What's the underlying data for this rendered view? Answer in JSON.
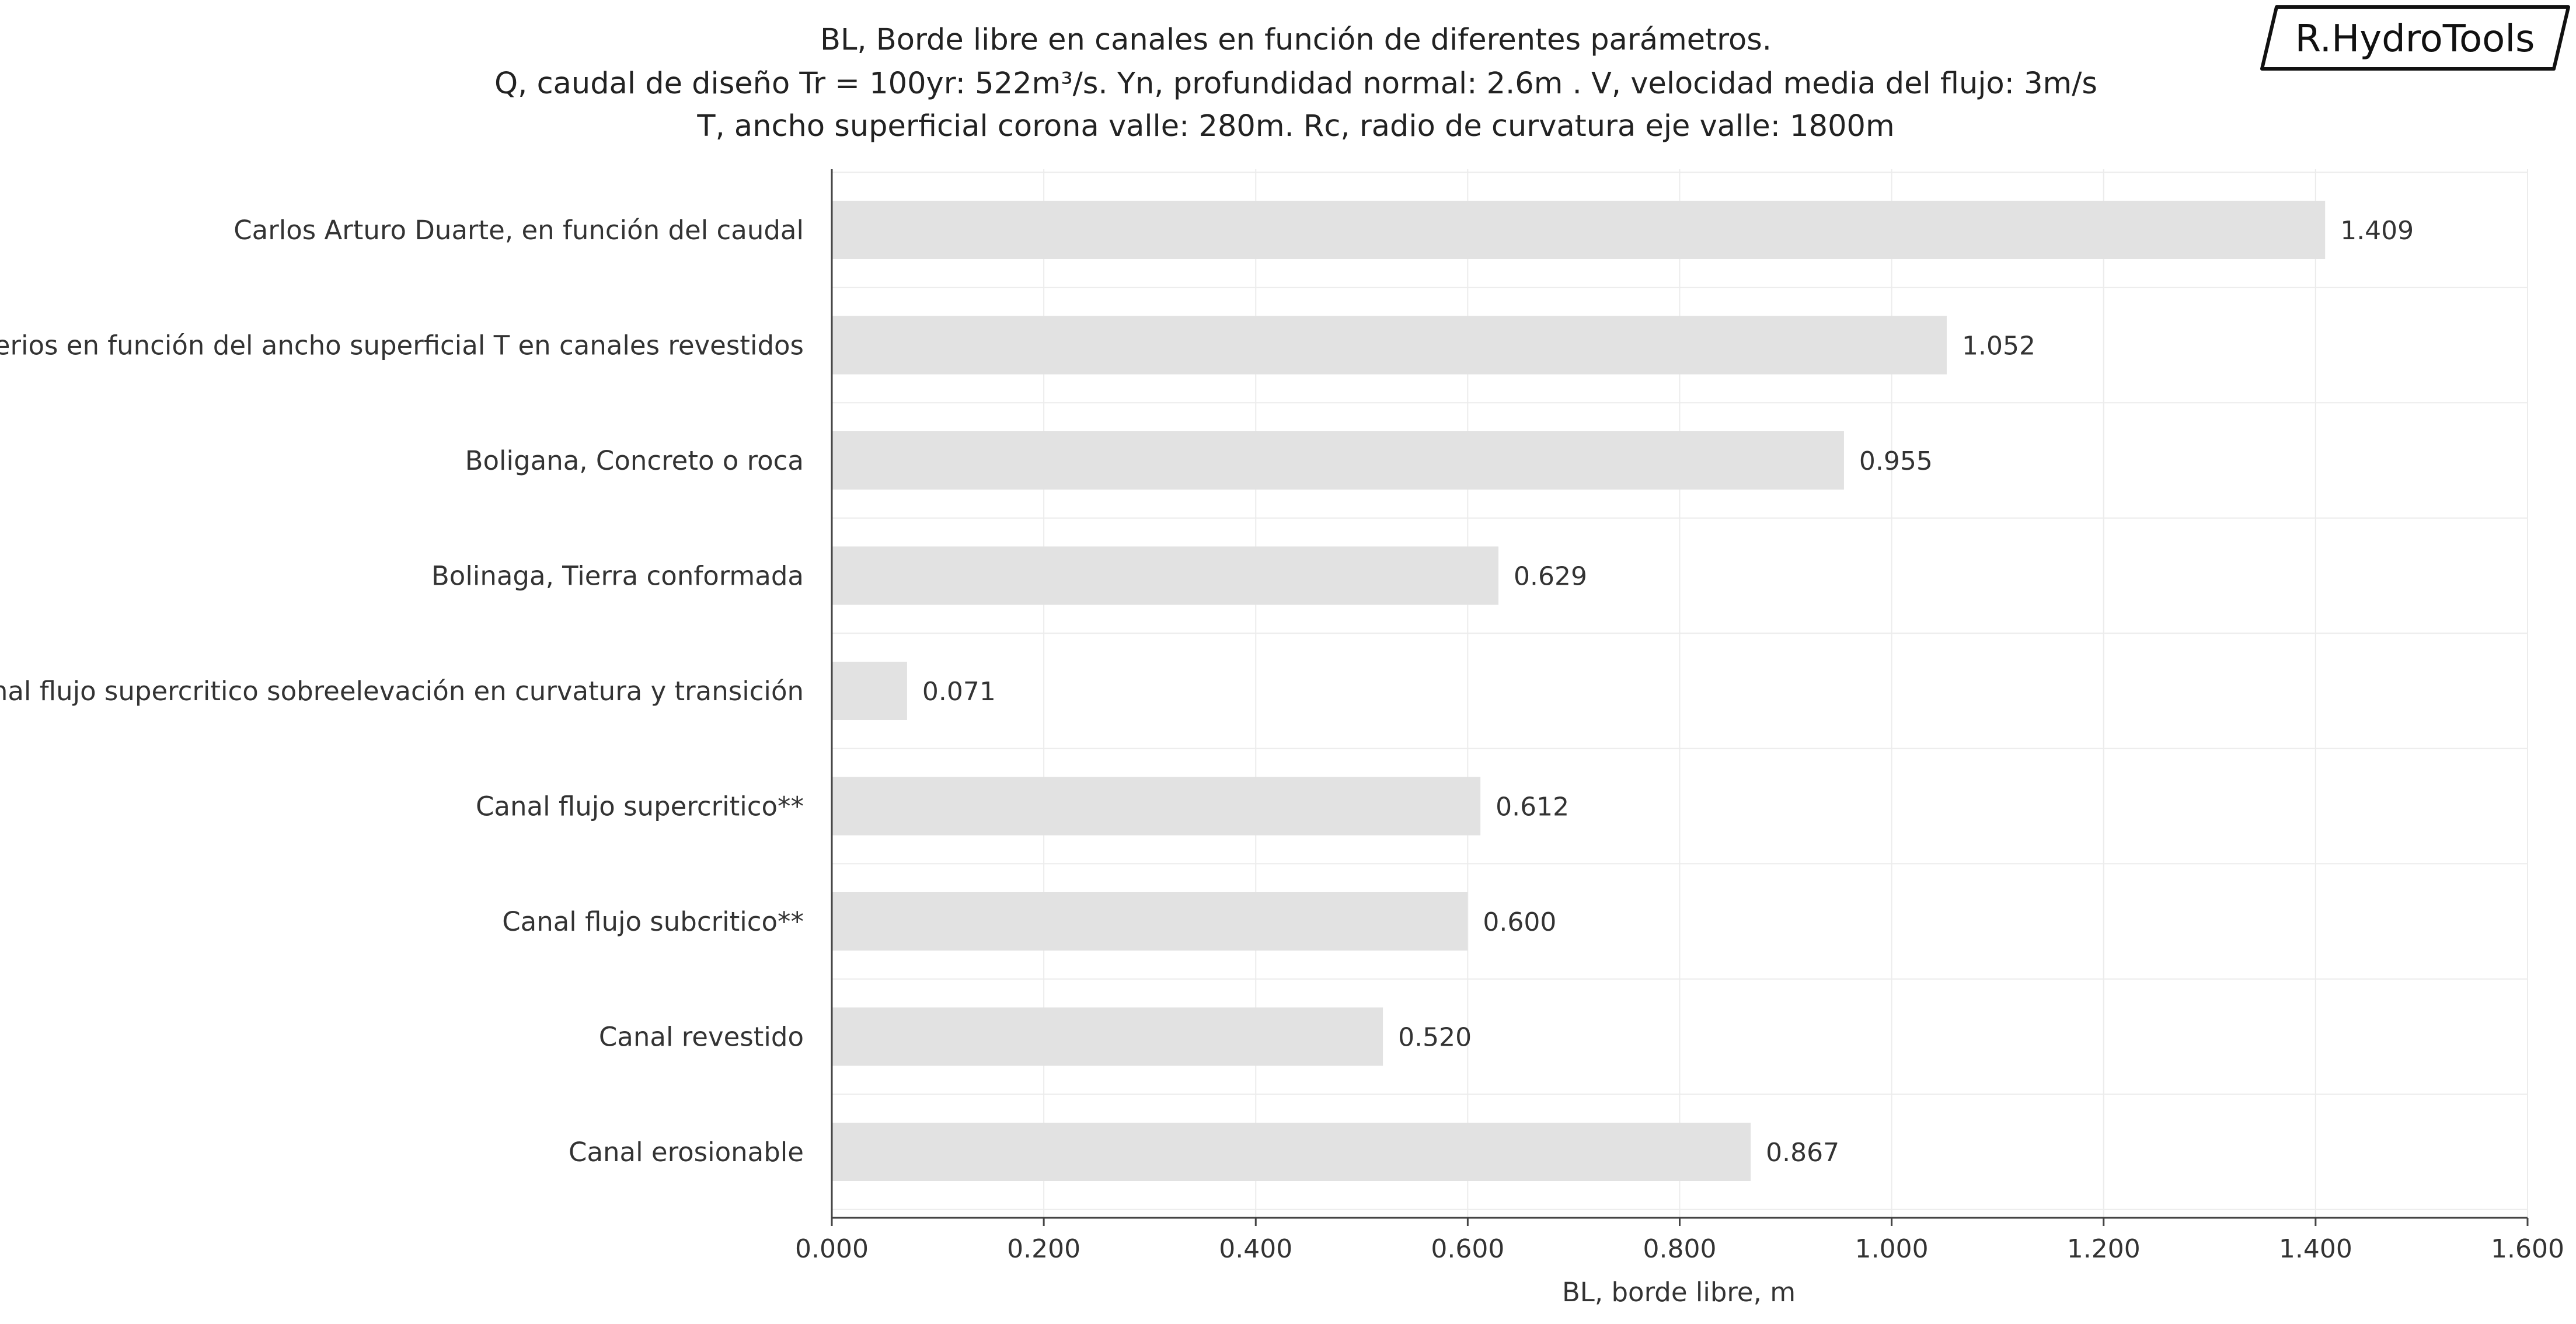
{
  "logo": {
    "text": "R.HydroTools"
  },
  "chart_data": {
    "type": "bar",
    "orientation": "horizontal",
    "title_lines": [
      "BL, Borde libre en canales en función de diferentes parámetros.",
      "Q, caudal de diseño Tr = 100yr: 522m³/s. Yn, profundidad normal: 2.6m . V, velocidad media del flujo: 3m/s",
      "T, ancho superficial corona valle: 280m. Rc, radio de curvatura eje valle: 1800m"
    ],
    "categories": [
      "Carlos Arturo Duarte, en función del caudal",
      "Criterios en función del ancho superficial T en canales revestidos",
      "Boligana, Concreto o roca",
      "Bolinaga, Tierra conformada",
      "Canal flujo supercritico sobreelevación en curvatura y transición",
      "Canal flujo supercritico**",
      "Canal flujo subcritico**",
      "Canal revestido",
      "Canal erosionable"
    ],
    "values": [
      1.409,
      1.052,
      0.955,
      0.629,
      0.071,
      0.612,
      0.6,
      0.52,
      0.867
    ],
    "value_labels": [
      "1.409",
      "1.052",
      "0.955",
      "0.629",
      "0.071",
      "0.612",
      "0.600",
      "0.520",
      "0.867"
    ],
    "xlabel": "BL, borde libre, m",
    "ylabel": "",
    "xlim": [
      0,
      1.6
    ],
    "xticks": [
      0,
      0.2,
      0.4,
      0.6,
      0.8,
      1.0,
      1.2,
      1.4,
      1.6
    ],
    "xtick_labels": [
      "0.000",
      "0.200",
      "0.400",
      "0.600",
      "0.800",
      "1.000",
      "1.200",
      "1.400",
      "1.600"
    ],
    "grid": true,
    "legend": "none",
    "bar_color": "#e2e2e2"
  }
}
